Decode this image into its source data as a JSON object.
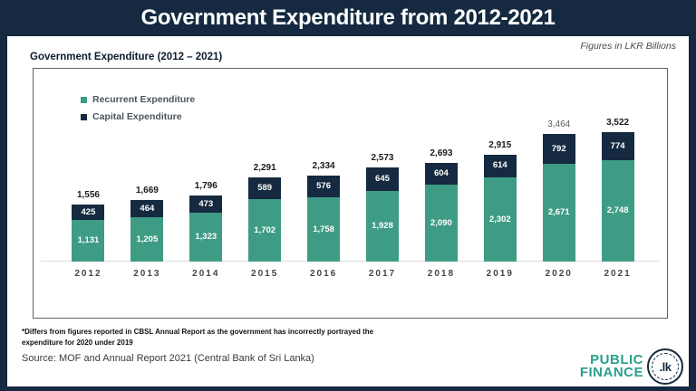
{
  "header": {
    "title": "Government Expenditure from 2012-2021"
  },
  "card": {
    "units_note": "Figures in LKR Billions",
    "chart_heading": "Government Expenditure (2012 – 2021)",
    "footnote_line1": "*Differs from figures reported in CBSL Annual Report as the government has incorrectly portrayed the",
    "footnote_line2": "expenditure for 2020 under 2019",
    "source": "Source: MOF and Annual Report 2021 (Central Bank of Sri Lanka)"
  },
  "logo": {
    "line1": "PUBLIC",
    "line2": "FINANCE",
    "badge": ".lk"
  },
  "colors": {
    "navy": "#152a40",
    "teal": "#3e9c85",
    "logo_teal": "#2ba08c",
    "muted_total": "#5c5c5c"
  },
  "chart_data": {
    "type": "bar",
    "stacked": true,
    "title": "Government Expenditure (2012 – 2021)",
    "units": "LKR Billions",
    "legend_position": "top-left-inside",
    "grid": false,
    "ylim": [
      0,
      3600
    ],
    "categories": [
      "2012",
      "2013",
      "2014",
      "2015",
      "2016",
      "2017",
      "2018",
      "2019",
      "2020",
      "2021"
    ],
    "series": [
      {
        "name": "Recurrent Expenditure",
        "color": "#3e9c85",
        "values": [
          1131,
          1205,
          1323,
          1702,
          1758,
          1928,
          2090,
          2302,
          2671,
          2748
        ]
      },
      {
        "name": "Capital Expenditure",
        "color": "#152a40",
        "values": [
          425,
          464,
          473,
          589,
          576,
          645,
          604,
          614,
          792,
          774
        ]
      }
    ],
    "totals": [
      1556,
      1669,
      1796,
      2291,
      2334,
      2573,
      2693,
      2915,
      3464,
      3522
    ],
    "muted_total_index": 8
  }
}
